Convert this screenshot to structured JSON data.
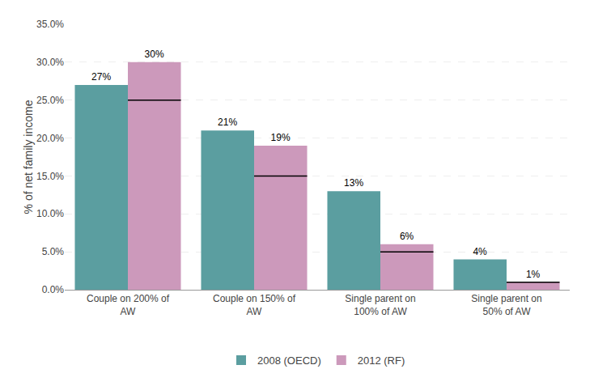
{
  "chart_data": {
    "type": "bar",
    "categories": [
      "Couple on 200% of\nAW",
      "Couple on 150% of\nAW",
      "Single parent on\n100% of AW",
      "Single parent on\n50% of AW"
    ],
    "series": [
      {
        "name": "2008 (OECD)",
        "color": "#5b9ea0",
        "values": [
          27,
          21,
          13,
          4
        ],
        "value_labels": [
          "27%",
          "21%",
          "13%",
          "4%"
        ]
      },
      {
        "name": "2012 (RF)",
        "color": "#cc99bb",
        "values": [
          30,
          19,
          6,
          1
        ],
        "value_labels": [
          "30%",
          "19%",
          "6%",
          "1%"
        ],
        "reference_lines": [
          25,
          15,
          5,
          1
        ]
      }
    ],
    "ylabel": "% of net family income",
    "ylim": [
      0,
      35
    ],
    "yticks": [
      {
        "value": 0,
        "label": "0.0%"
      },
      {
        "value": 5,
        "label": "5.0%"
      },
      {
        "value": 10,
        "label": "10.0%"
      },
      {
        "value": 15,
        "label": "15.0%"
      },
      {
        "value": 20,
        "label": "20.0%"
      },
      {
        "value": 25,
        "label": "25.0%"
      },
      {
        "value": 30,
        "label": "30.0%"
      },
      {
        "value": 35,
        "label": "35.0%"
      }
    ],
    "grid": true,
    "legend": "bottom",
    "data_labels": true
  }
}
